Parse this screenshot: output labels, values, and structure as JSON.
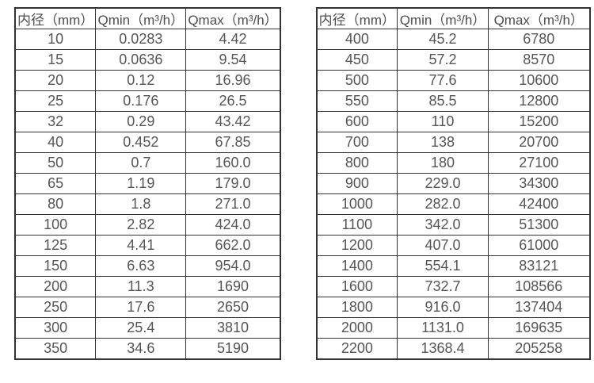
{
  "table_left": {
    "headers": [
      "内径（mm）",
      "Qmin（m³/h）",
      "Qmax（m³/h）"
    ],
    "rows": [
      [
        "10",
        "0.0283",
        "4.42"
      ],
      [
        "15",
        "0.0636",
        "9.54"
      ],
      [
        "20",
        "0.12",
        "16.96"
      ],
      [
        "25",
        "0.176",
        "26.5"
      ],
      [
        "32",
        "0.29",
        "43.42"
      ],
      [
        "40",
        "0.452",
        "67.85"
      ],
      [
        "50",
        "0.7",
        "160.0"
      ],
      [
        "65",
        "1.19",
        "179.0"
      ],
      [
        "80",
        "1.8",
        "271.0"
      ],
      [
        "100",
        "2.82",
        "424.0"
      ],
      [
        "125",
        "4.41",
        "662.0"
      ],
      [
        "150",
        "6.63",
        "954.0"
      ],
      [
        "200",
        "11.3",
        "1690"
      ],
      [
        "250",
        "17.6",
        "2650"
      ],
      [
        "300",
        "25.4",
        "3810"
      ],
      [
        "350",
        "34.6",
        "5190"
      ]
    ]
  },
  "table_right": {
    "headers": [
      "内径（mm）",
      "Qmin（m³/h）",
      "Qmax（m³/h）"
    ],
    "rows": [
      [
        "400",
        "45.2",
        "6780"
      ],
      [
        "450",
        "57.2",
        "8570"
      ],
      [
        "500",
        "77.6",
        "10600"
      ],
      [
        "550",
        "85.5",
        "12800"
      ],
      [
        "600",
        "110",
        "15200"
      ],
      [
        "700",
        "138",
        "20700"
      ],
      [
        "800",
        "180",
        "27100"
      ],
      [
        "900",
        "229.0",
        "34300"
      ],
      [
        "1000",
        "282.0",
        "42400"
      ],
      [
        "1100",
        "342.0",
        "51300"
      ],
      [
        "1200",
        "407.0",
        "61000"
      ],
      [
        "1400",
        "554.1",
        "83121"
      ],
      [
        "1600",
        "732.7",
        "108566"
      ],
      [
        "1800",
        "916.0",
        "137404"
      ],
      [
        "2000",
        "1131.0",
        "169635"
      ],
      [
        "2200",
        "1368.4",
        "205258"
      ]
    ]
  },
  "colors": {
    "border": "#333333",
    "text": "#555555",
    "background": "#ffffff"
  }
}
